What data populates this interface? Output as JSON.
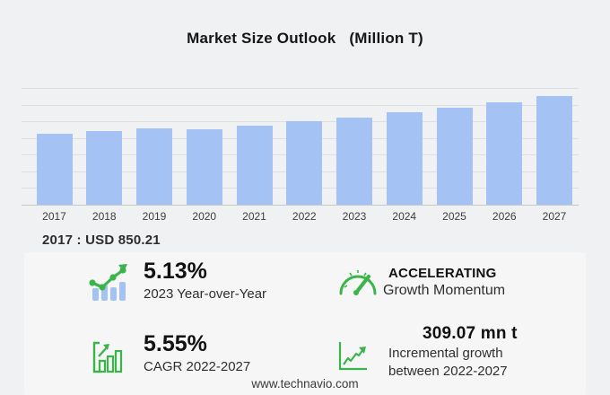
{
  "title": "Market Size Outlook",
  "unit_label": "(Million T)",
  "annotation": "2017 : USD  850.21",
  "footer": "www.technavio.com",
  "colors": {
    "page_bg": "#f0f1f2",
    "panel_bg": "#f6f6f7",
    "bar": "#a4c3f4",
    "grid": "#dedede",
    "axis": "#c4c7c9",
    "green": "#3bb54a",
    "text": "#1b1b1b"
  },
  "chart_data": {
    "type": "bar",
    "title": "Market Size Outlook (Million T)",
    "categories": [
      "2017",
      "2018",
      "2019",
      "2020",
      "2021",
      "2022",
      "2023",
      "2024",
      "2025",
      "2026",
      "2027"
    ],
    "values": [
      850.21,
      880,
      917,
      903,
      944,
      996.9,
      1048.1,
      1106,
      1167,
      1233,
      1305.97
    ],
    "xlabel": "",
    "ylabel": "Million T",
    "ylim": [
      0,
      1400
    ],
    "gridline_step": 200,
    "grid": "horizontal only, no y-axis tick labels",
    "legend": "none",
    "annotation": "2017 : USD  850.21"
  },
  "stats": {
    "yoy": {
      "value": "5.13%",
      "label": "2023 Year-over-Year",
      "icon": "bar-trend-icon"
    },
    "momentum": {
      "value": "ACCELERATING",
      "label": "Growth Momentum",
      "icon": "speedometer-icon"
    },
    "cagr": {
      "value": "5.55%",
      "label": "CAGR 2022-2027",
      "icon": "bar-growth-icon"
    },
    "incremental": {
      "value": "309.07 mn t",
      "label_line1": "Incremental growth",
      "label_line2": "between 2022-2027",
      "icon": "line-growth-icon"
    }
  }
}
